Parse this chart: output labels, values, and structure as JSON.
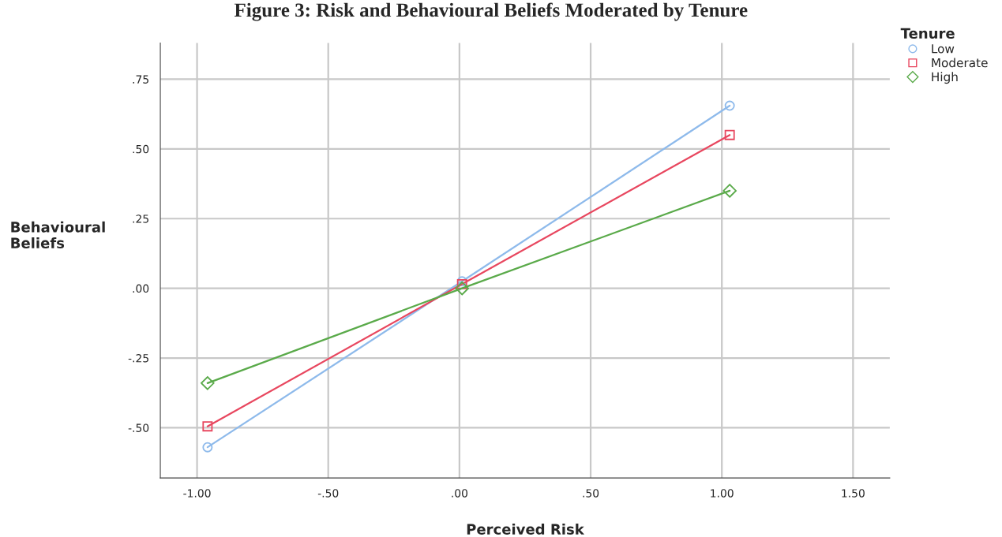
{
  "chart_data": {
    "type": "line",
    "title": "Figure 3: Risk and Behavioural Beliefs Moderated by Tenure",
    "xlabel": "Perceived Risk",
    "ylabel": "Behavioural\nBeliefs",
    "legend_title": "Tenure",
    "x": [
      -0.96,
      0.01,
      1.03
    ],
    "series": [
      {
        "name": "Low",
        "color": "#8ebaeb",
        "marker": "circle",
        "values": [
          -0.57,
          0.025,
          0.655
        ]
      },
      {
        "name": "Moderate",
        "color": "#e8475f",
        "marker": "square",
        "values": [
          -0.495,
          0.015,
          0.55
        ]
      },
      {
        "name": "High",
        "color": "#5aaa4a",
        "marker": "diamond",
        "values": [
          -0.34,
          0.0,
          0.35
        ]
      }
    ],
    "xlim": [
      -1.14,
      1.64
    ],
    "ylim": [
      -0.68,
      0.88
    ],
    "xticks": [
      {
        "value": -1.0,
        "label": "-1.00"
      },
      {
        "value": -0.5,
        "label": "-.50"
      },
      {
        "value": 0,
        "label": ".00"
      },
      {
        "value": 0.5,
        "label": ".50"
      },
      {
        "value": 1.0,
        "label": "1.00"
      },
      {
        "value": 1.5,
        "label": "1.50"
      }
    ],
    "yticks": [
      {
        "value": -0.5,
        "label": "-.50"
      },
      {
        "value": -0.25,
        "label": "-.25"
      },
      {
        "value": 0,
        "label": ".00"
      },
      {
        "value": 0.25,
        "label": ".25"
      },
      {
        "value": 0.5,
        "label": ".50"
      },
      {
        "value": 0.75,
        "label": ".75"
      }
    ],
    "grid": true,
    "legend": "top right",
    "line_style": "solid"
  }
}
